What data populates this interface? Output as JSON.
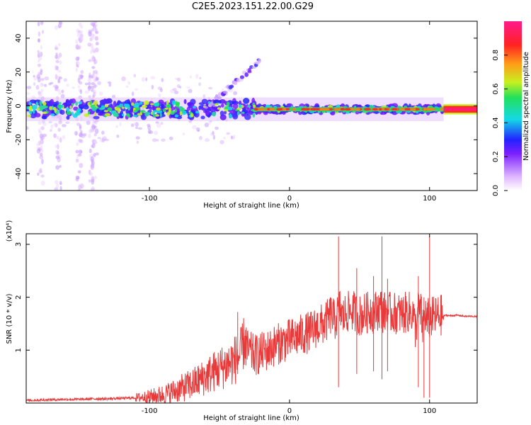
{
  "title": "C2E5.2023.151.22.00.G29",
  "colors": {
    "axis": "#000000",
    "snr_line": "#e83a3a",
    "colormap": [
      "#ffffff",
      "#d8b0ff",
      "#7a1fff",
      "#2222ff",
      "#14d8e6",
      "#22e05a",
      "#c8f020",
      "#ff7a18",
      "#ff2222",
      "#ff1a8c"
    ]
  },
  "chart_data": [
    {
      "type": "heatmap",
      "title": "C2E5.2023.151.22.00.G29",
      "xlabel": "Height of straight line (km)",
      "ylabel": "Frequency (Hz)",
      "xlim": [
        -188,
        134
      ],
      "ylim": [
        -50,
        50
      ],
      "xticks": [
        "-100",
        "0",
        "100"
      ],
      "xtick_values": [
        -100,
        0,
        100
      ],
      "yticks": [
        "-40",
        "-20",
        "0",
        "20",
        "40"
      ],
      "ytick_values": [
        -40,
        -20,
        0,
        20,
        40
      ],
      "grid": false,
      "description_values": {
        "center_band_hz": -2,
        "signal_ends_at_km": 110
      },
      "colorbar": {
        "label": "Normalized spectral amplitude",
        "range": [
          0,
          1
        ],
        "ticks": [
          "0.0",
          "0.2",
          "0.4",
          "0.6",
          "0.8"
        ],
        "tick_values": [
          0.0,
          0.2,
          0.4,
          0.6,
          0.8
        ]
      }
    },
    {
      "type": "line",
      "xlabel": "Height of straight line (km)",
      "ylabel": "SNR (10 * v/v)",
      "scale_label": "(x10⁴)",
      "xlim": [
        -188,
        134
      ],
      "ylim": [
        0,
        3.2
      ],
      "xticks": [
        "-100",
        "0",
        "100"
      ],
      "xtick_values": [
        -100,
        0,
        100
      ],
      "yticks": [
        "1",
        "2",
        "3"
      ],
      "ytick_values": [
        1,
        2,
        3
      ],
      "grid": false,
      "series": [
        {
          "x": [
            -188,
            -175,
            -160,
            -150,
            -140,
            -130,
            -120,
            -110,
            -100,
            -95,
            -90,
            -85,
            -80,
            -75,
            -70,
            -65,
            -60,
            -55,
            -50,
            -45,
            -40,
            -35,
            -32,
            -30,
            -25,
            -20,
            -15,
            -10,
            -5,
            0,
            5,
            10,
            15,
            20,
            25,
            28,
            30,
            32,
            34,
            36,
            38,
            40,
            45,
            50,
            55,
            58,
            60,
            62,
            65,
            67,
            70,
            72,
            75,
            80,
            85,
            88,
            90,
            92,
            94,
            95,
            96,
            97,
            98,
            99,
            100,
            102,
            104,
            106,
            108,
            110,
            112,
            115,
            120,
            125,
            130,
            134
          ],
          "values": [
            0.05,
            0.06,
            0.07,
            0.07,
            0.08,
            0.08,
            0.09,
            0.1,
            0.12,
            0.14,
            0.16,
            0.2,
            0.25,
            0.3,
            0.35,
            0.42,
            0.5,
            0.58,
            0.65,
            0.72,
            0.8,
            0.9,
            1.2,
            1.0,
            0.9,
            0.95,
            1.0,
            1.1,
            1.15,
            1.2,
            1.25,
            1.3,
            1.35,
            1.45,
            1.5,
            1.6,
            1.7,
            1.55,
            1.65,
            1.8,
            1.6,
            1.7,
            1.75,
            1.65,
            1.7,
            1.75,
            1.7,
            1.75,
            1.8,
            1.7,
            1.75,
            1.7,
            1.7,
            1.68,
            1.72,
            1.7,
            1.4,
            1.75,
            1.7,
            1.4,
            1.6,
            1.7,
            1.5,
            1.6,
            1.6,
            1.62,
            1.63,
            1.65,
            1.66,
            1.65,
            1.66,
            1.65,
            1.66,
            1.64,
            1.64,
            1.63
          ]
        }
      ],
      "spikes": [
        {
          "x": -37,
          "top": 1.72,
          "bottom": 0.55
        },
        {
          "x": 35,
          "top": 3.15,
          "bottom": 0.3
        },
        {
          "x": 48,
          "top": 2.55,
          "bottom": 0.55
        },
        {
          "x": 60,
          "top": 2.4,
          "bottom": 0.6
        },
        {
          "x": 66,
          "top": 3.15,
          "bottom": 0.45
        },
        {
          "x": 70,
          "top": 2.35,
          "bottom": 0.6
        },
        {
          "x": 92,
          "top": 2.4,
          "bottom": 0.3
        },
        {
          "x": 96,
          "top": 2.0,
          "bottom": 0.1
        },
        {
          "x": 100,
          "top": 3.15,
          "bottom": 0.1
        }
      ]
    }
  ]
}
